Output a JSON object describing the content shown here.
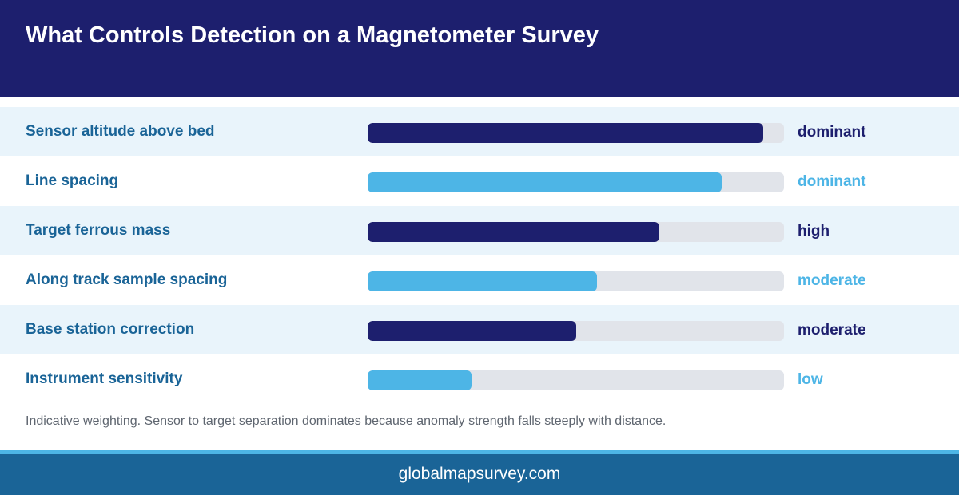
{
  "header": {
    "title": "What Controls Detection on a Magnetometer Survey"
  },
  "colors": {
    "dark": "#1d1f6e",
    "light": "#4db5e6",
    "track": "#e1e4ea",
    "label": "#1a6497"
  },
  "chart_data": {
    "type": "bar",
    "orientation": "horizontal",
    "title": "What Controls Detection on a Magnetometer Survey",
    "xlim": [
      0,
      1
    ],
    "categories": [
      "Sensor altitude above bed",
      "Line spacing",
      "Target ferrous mass",
      "Along track sample spacing",
      "Base station correction",
      "Instrument sensitivity"
    ],
    "values": [
      0.95,
      0.85,
      0.7,
      0.55,
      0.5,
      0.25
    ],
    "value_labels": [
      "dominant",
      "dominant",
      "high",
      "moderate",
      "moderate",
      "low"
    ],
    "bar_colors": [
      "#1d1f6e",
      "#4db5e6",
      "#1d1f6e",
      "#4db5e6",
      "#1d1f6e",
      "#4db5e6"
    ],
    "grid": false,
    "legend": "none"
  },
  "note": "Indicative weighting. Sensor to target separation dominates because anomaly strength falls steeply with distance.",
  "footer": {
    "text": "globalmapsurvey.com"
  }
}
